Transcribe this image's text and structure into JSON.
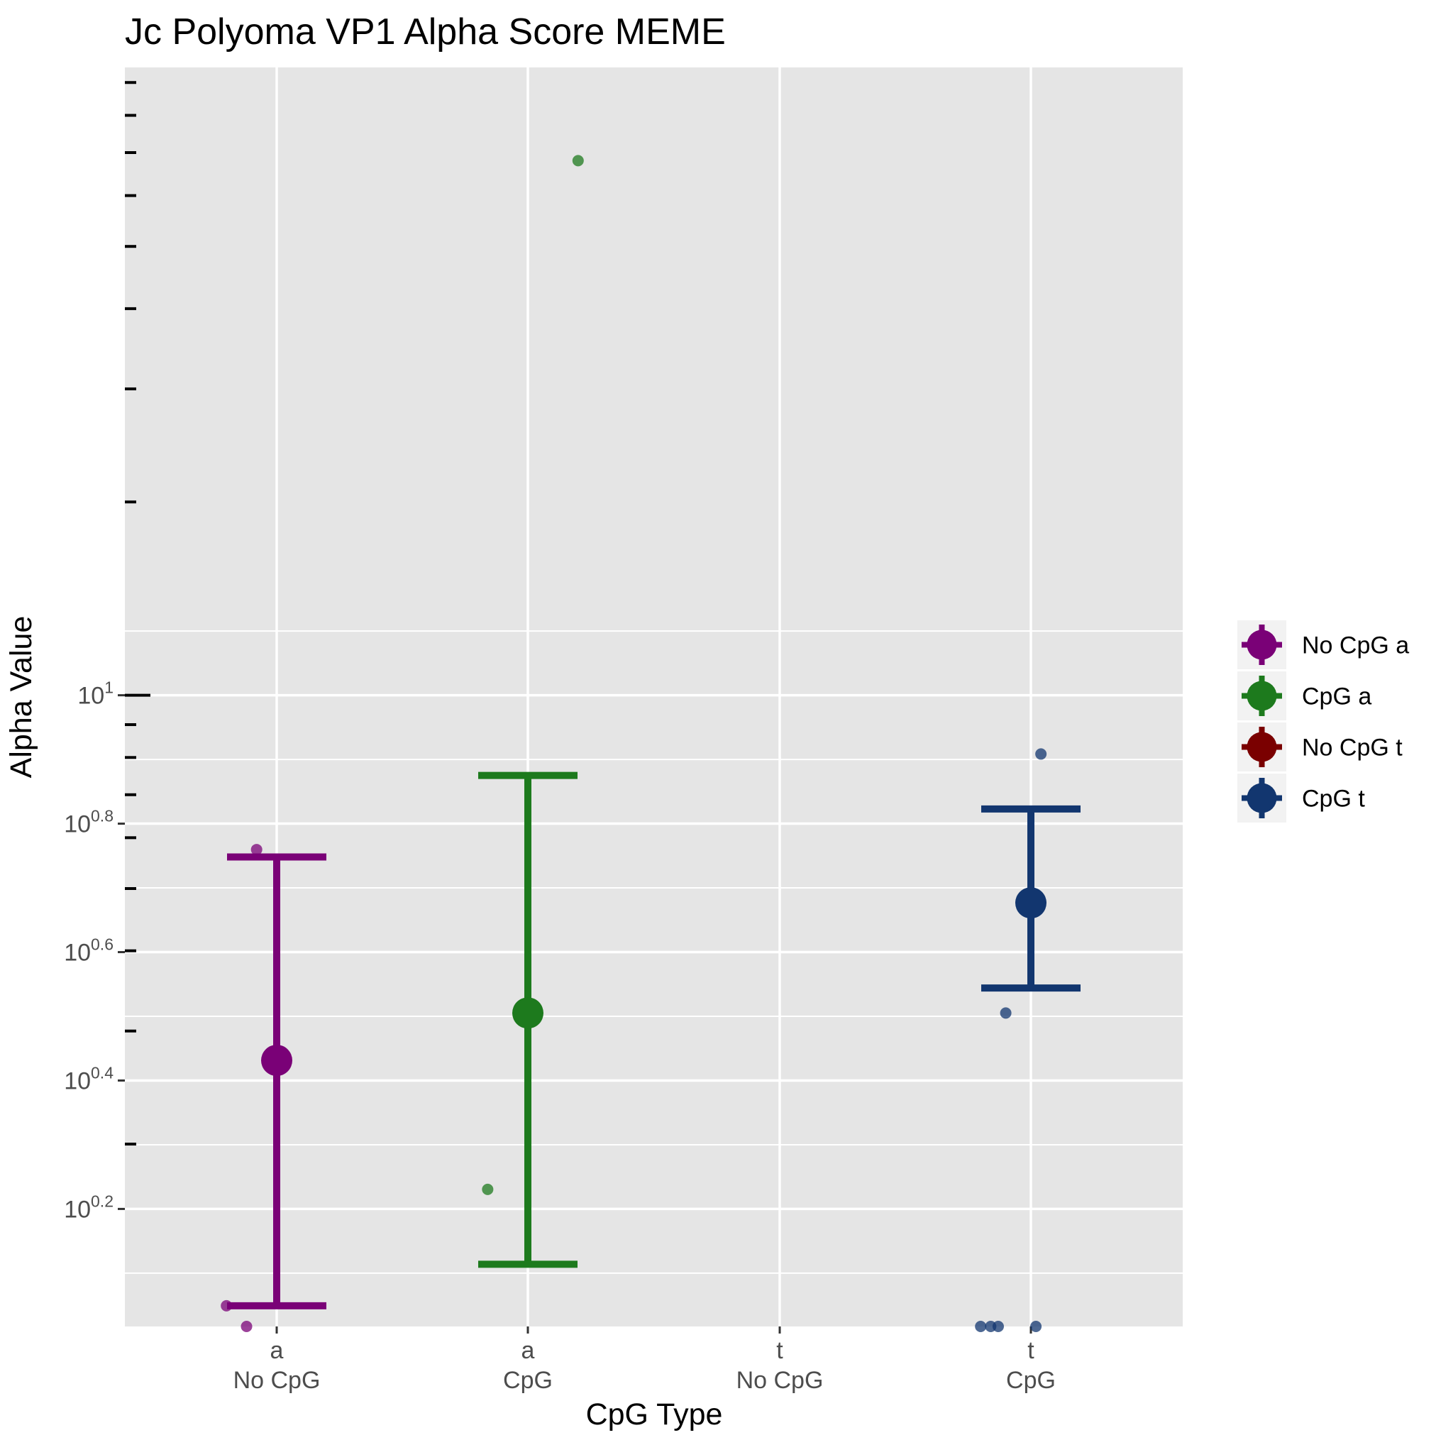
{
  "chart_data": {
    "type": "scatter",
    "title": "Jc Polyoma VP1 Alpha Score MEME",
    "xlabel": "CpG Type",
    "ylabel": "Alpha Value",
    "y_scale": "log10",
    "ylim": [
      1.04,
      95
    ],
    "grid": true,
    "legend_position": "right",
    "categories": [
      {
        "top": "a",
        "bottom": "No CpG"
      },
      {
        "top": "a",
        "bottom": "CpG"
      },
      {
        "top": "t",
        "bottom": "No CpG"
      },
      {
        "top": "t",
        "bottom": "CpG"
      }
    ],
    "y_ticks": [
      {
        "base": "10",
        "exp": "0.2",
        "value": 1.585
      },
      {
        "base": "10",
        "exp": "0.4",
        "value": 2.512
      },
      {
        "base": "10",
        "exp": "0.6",
        "value": 3.981
      },
      {
        "base": "10",
        "exp": "0.8",
        "value": 6.31
      },
      {
        "base": "10",
        "exp": "1",
        "value": 10
      }
    ],
    "series": [
      {
        "name": "No CpG a",
        "color": "#7a0177",
        "category_index": 0,
        "mean": 2.7,
        "error_low": 1.12,
        "error_high": 5.6,
        "points": [
          {
            "x_jitter": -0.2,
            "y": 1.12
          },
          {
            "x_jitter": -0.12,
            "y": 1.04
          },
          {
            "x_jitter": -0.08,
            "y": 5.75
          }
        ]
      },
      {
        "name": "CpG a",
        "color": "#1d7a1d",
        "category_index": 1,
        "mean": 3.2,
        "error_low": 1.3,
        "error_high": 7.5,
        "points": [
          {
            "x_jitter": -0.16,
            "y": 1.7
          },
          {
            "x_jitter": 0.2,
            "y": 68.0
          }
        ]
      },
      {
        "name": "No CpG t",
        "color": "#7a0000",
        "category_index": 2,
        "points": []
      },
      {
        "name": "CpG t",
        "color": "#12366f",
        "category_index": 3,
        "mean": 4.75,
        "error_low": 3.5,
        "error_high": 6.65,
        "points": [
          {
            "x_jitter": -0.2,
            "y": 1.04
          },
          {
            "x_jitter": -0.16,
            "y": 1.04
          },
          {
            "x_jitter": -0.13,
            "y": 1.04
          },
          {
            "x_jitter": -0.1,
            "y": 3.2
          },
          {
            "x_jitter": 0.02,
            "y": 1.04
          },
          {
            "x_jitter": 0.04,
            "y": 8.1
          }
        ]
      }
    ]
  }
}
